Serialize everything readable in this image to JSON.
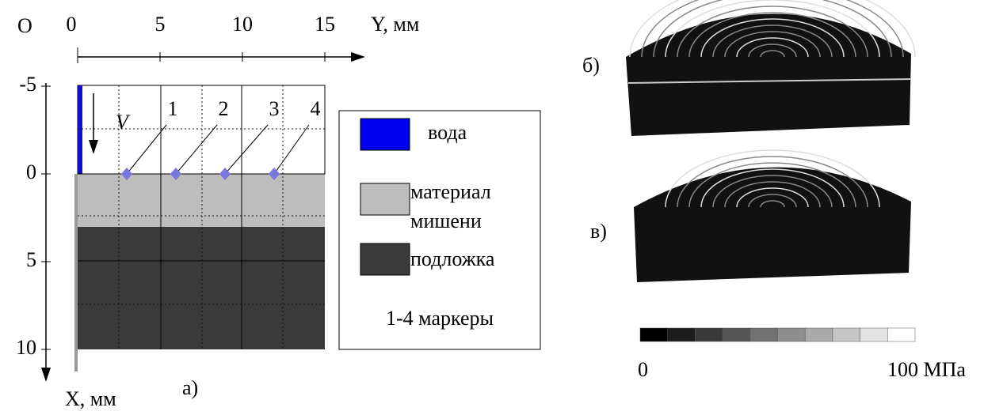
{
  "figure": {
    "origin": "O",
    "y_axis": {
      "label": "Y, мм",
      "ticks": [
        0,
        5,
        10,
        15
      ]
    },
    "x_axis": {
      "label": "X, мм",
      "ticks": [
        -5,
        0,
        5,
        10
      ]
    },
    "velocity_label": "V",
    "markers": [
      "1",
      "2",
      "3",
      "4"
    ],
    "panel_labels": {
      "a": "а)",
      "b": "б)",
      "c": "в)"
    },
    "legend": {
      "water": "вода",
      "target_line1": "материал",
      "target_line2": "мишени",
      "substrate": "подложка",
      "markers": "1-4 маркеры"
    },
    "colorbar": {
      "min_label": "0",
      "max_label": "100 МПа"
    }
  }
}
